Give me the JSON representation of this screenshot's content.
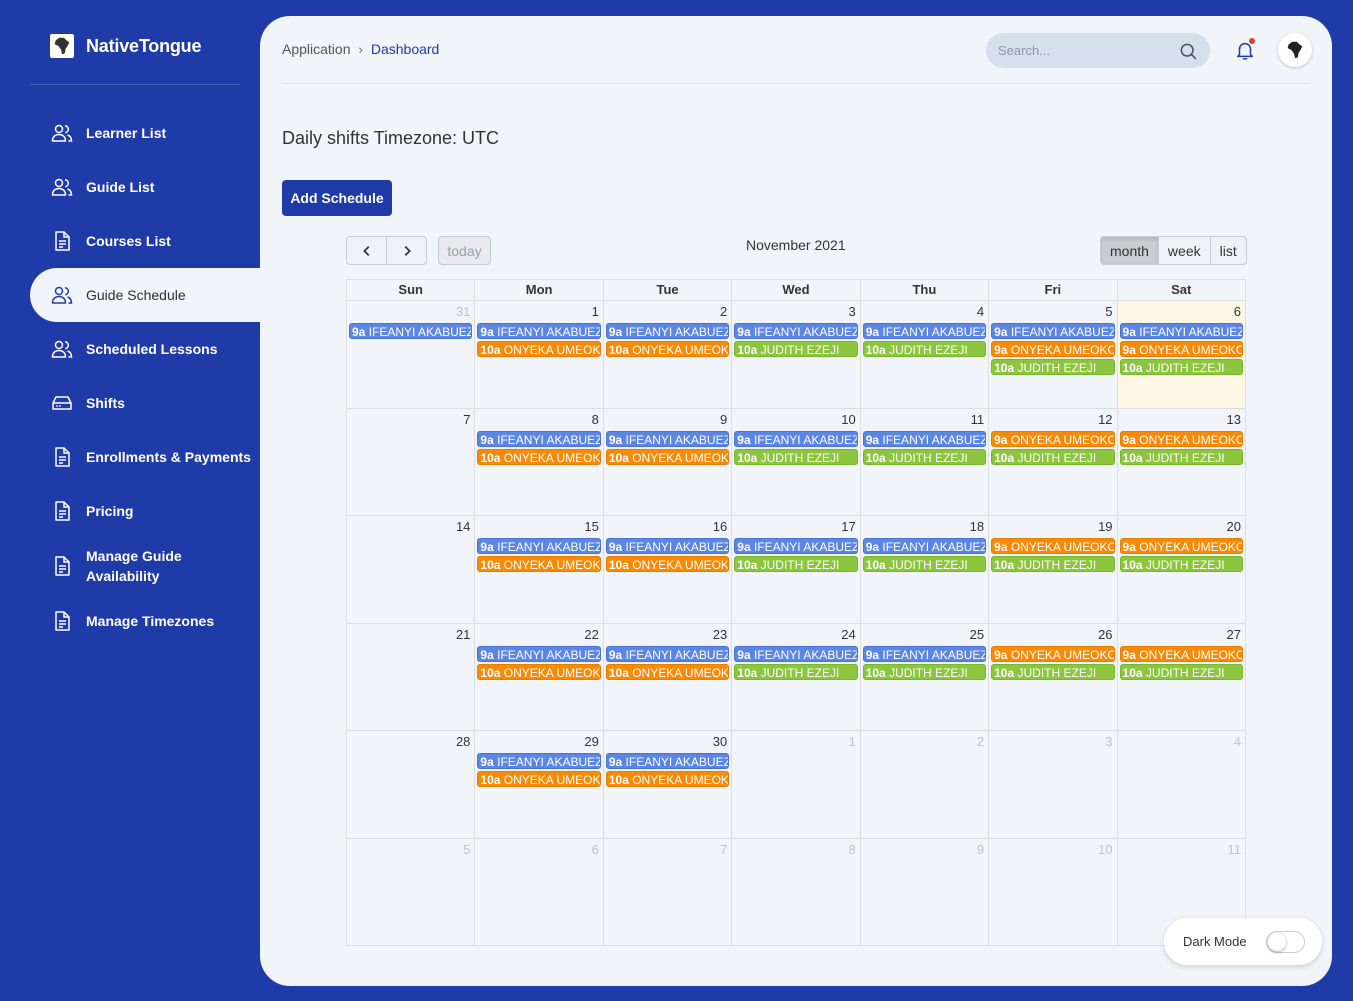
{
  "app": {
    "name": "NativeTongue"
  },
  "sidebar": {
    "items": [
      {
        "label": "Learner List",
        "icon": "users-icon"
      },
      {
        "label": "Guide List",
        "icon": "users-icon"
      },
      {
        "label": "Courses List",
        "icon": "document-icon"
      },
      {
        "label": "Guide Schedule",
        "icon": "users-icon",
        "active": true
      },
      {
        "label": "Scheduled Lessons",
        "icon": "users-icon"
      },
      {
        "label": "Shifts",
        "icon": "drive-icon"
      },
      {
        "label": "Enrollments & Payments",
        "icon": "document-icon"
      },
      {
        "label": "Pricing",
        "icon": "document-icon"
      },
      {
        "label": "Manage Guide Availability",
        "icon": "document-icon"
      },
      {
        "label": "Manage Timezones",
        "icon": "document-icon"
      }
    ]
  },
  "header": {
    "breadcrumb": [
      "Application",
      "Dashboard"
    ],
    "search_placeholder": "Search..."
  },
  "page": {
    "title": "Daily shifts Timezone: UTC",
    "add_button": "Add Schedule"
  },
  "calendar": {
    "title": "November 2021",
    "today_label": "today",
    "views": [
      "month",
      "week",
      "list"
    ],
    "active_view": "month",
    "weekdays": [
      "Sun",
      "Mon",
      "Tue",
      "Wed",
      "Thu",
      "Fri",
      "Sat"
    ],
    "weeks": [
      [
        {
          "day": "31",
          "other": true,
          "events": [
            {
              "time": "9a",
              "name": "IFEANYI AKABUEZE",
              "color": "blue"
            }
          ]
        },
        {
          "day": "1",
          "events": [
            {
              "time": "9a",
              "name": "IFEANYI AKABUEZE",
              "color": "blue"
            },
            {
              "time": "10a",
              "name": "ONYEKA UMEOKONKWO",
              "color": "orange"
            }
          ]
        },
        {
          "day": "2",
          "events": [
            {
              "time": "9a",
              "name": "IFEANYI AKABUEZE",
              "color": "blue"
            },
            {
              "time": "10a",
              "name": "ONYEKA UMEOKONKWO",
              "color": "orange"
            }
          ]
        },
        {
          "day": "3",
          "events": [
            {
              "time": "9a",
              "name": "IFEANYI AKABUEZE",
              "color": "blue"
            },
            {
              "time": "10a",
              "name": "JUDITH EZEJI",
              "color": "green"
            }
          ]
        },
        {
          "day": "4",
          "events": [
            {
              "time": "9a",
              "name": "IFEANYI AKABUEZE",
              "color": "blue"
            },
            {
              "time": "10a",
              "name": "JUDITH EZEJI",
              "color": "green"
            }
          ]
        },
        {
          "day": "5",
          "events": [
            {
              "time": "9a",
              "name": "IFEANYI AKABUEZE",
              "color": "blue"
            },
            {
              "time": "9a",
              "name": "ONYEKA UMEOKONKWO",
              "color": "orange"
            },
            {
              "time": "10a",
              "name": "JUDITH EZEJI",
              "color": "green"
            }
          ]
        },
        {
          "day": "6",
          "today": true,
          "events": [
            {
              "time": "9a",
              "name": "IFEANYI AKABUEZE",
              "color": "blue"
            },
            {
              "time": "9a",
              "name": "ONYEKA UMEOKONKWO",
              "color": "orange"
            },
            {
              "time": "10a",
              "name": "JUDITH EZEJI",
              "color": "green"
            }
          ]
        }
      ],
      [
        {
          "day": "7",
          "events": []
        },
        {
          "day": "8",
          "events": [
            {
              "time": "9a",
              "name": "IFEANYI AKABUEZE",
              "color": "blue"
            },
            {
              "time": "10a",
              "name": "ONYEKA UMEOKONKWO",
              "color": "orange"
            }
          ]
        },
        {
          "day": "9",
          "events": [
            {
              "time": "9a",
              "name": "IFEANYI AKABUEZE",
              "color": "blue"
            },
            {
              "time": "10a",
              "name": "ONYEKA UMEOKONKWO",
              "color": "orange"
            }
          ]
        },
        {
          "day": "10",
          "events": [
            {
              "time": "9a",
              "name": "IFEANYI AKABUEZE",
              "color": "blue"
            },
            {
              "time": "10a",
              "name": "JUDITH EZEJI",
              "color": "green"
            }
          ]
        },
        {
          "day": "11",
          "events": [
            {
              "time": "9a",
              "name": "IFEANYI AKABUEZE",
              "color": "blue"
            },
            {
              "time": "10a",
              "name": "JUDITH EZEJI",
              "color": "green"
            }
          ]
        },
        {
          "day": "12",
          "events": [
            {
              "time": "9a",
              "name": "ONYEKA UMEOKONKWO",
              "color": "orange"
            },
            {
              "time": "10a",
              "name": "JUDITH EZEJI",
              "color": "green"
            }
          ]
        },
        {
          "day": "13",
          "events": [
            {
              "time": "9a",
              "name": "ONYEKA UMEOKONKWO",
              "color": "orange"
            },
            {
              "time": "10a",
              "name": "JUDITH EZEJI",
              "color": "green"
            }
          ]
        }
      ],
      [
        {
          "day": "14",
          "events": []
        },
        {
          "day": "15",
          "events": [
            {
              "time": "9a",
              "name": "IFEANYI AKABUEZE",
              "color": "blue"
            },
            {
              "time": "10a",
              "name": "ONYEKA UMEOKONKWO",
              "color": "orange"
            }
          ]
        },
        {
          "day": "16",
          "events": [
            {
              "time": "9a",
              "name": "IFEANYI AKABUEZE",
              "color": "blue"
            },
            {
              "time": "10a",
              "name": "ONYEKA UMEOKONKWO",
              "color": "orange"
            }
          ]
        },
        {
          "day": "17",
          "events": [
            {
              "time": "9a",
              "name": "IFEANYI AKABUEZE",
              "color": "blue"
            },
            {
              "time": "10a",
              "name": "JUDITH EZEJI",
              "color": "green"
            }
          ]
        },
        {
          "day": "18",
          "events": [
            {
              "time": "9a",
              "name": "IFEANYI AKABUEZE",
              "color": "blue"
            },
            {
              "time": "10a",
              "name": "JUDITH EZEJI",
              "color": "green"
            }
          ]
        },
        {
          "day": "19",
          "events": [
            {
              "time": "9a",
              "name": "ONYEKA UMEOKONKWO",
              "color": "orange"
            },
            {
              "time": "10a",
              "name": "JUDITH EZEJI",
              "color": "green"
            }
          ]
        },
        {
          "day": "20",
          "events": [
            {
              "time": "9a",
              "name": "ONYEKA UMEOKONKWO",
              "color": "orange"
            },
            {
              "time": "10a",
              "name": "JUDITH EZEJI",
              "color": "green"
            }
          ]
        }
      ],
      [
        {
          "day": "21",
          "events": []
        },
        {
          "day": "22",
          "events": [
            {
              "time": "9a",
              "name": "IFEANYI AKABUEZE",
              "color": "blue"
            },
            {
              "time": "10a",
              "name": "ONYEKA UMEOKONKWO",
              "color": "orange"
            }
          ]
        },
        {
          "day": "23",
          "events": [
            {
              "time": "9a",
              "name": "IFEANYI AKABUEZE",
              "color": "blue"
            },
            {
              "time": "10a",
              "name": "ONYEKA UMEOKONKWO",
              "color": "orange"
            }
          ]
        },
        {
          "day": "24",
          "events": [
            {
              "time": "9a",
              "name": "IFEANYI AKABUEZE",
              "color": "blue"
            },
            {
              "time": "10a",
              "name": "JUDITH EZEJI",
              "color": "green"
            }
          ]
        },
        {
          "day": "25",
          "events": [
            {
              "time": "9a",
              "name": "IFEANYI AKABUEZE",
              "color": "blue"
            },
            {
              "time": "10a",
              "name": "JUDITH EZEJI",
              "color": "green"
            }
          ]
        },
        {
          "day": "26",
          "events": [
            {
              "time": "9a",
              "name": "ONYEKA UMEOKONKWO",
              "color": "orange"
            },
            {
              "time": "10a",
              "name": "JUDITH EZEJI",
              "color": "green"
            }
          ]
        },
        {
          "day": "27",
          "events": [
            {
              "time": "9a",
              "name": "ONYEKA UMEOKONKWO",
              "color": "orange"
            },
            {
              "time": "10a",
              "name": "JUDITH EZEJI",
              "color": "green"
            }
          ]
        }
      ],
      [
        {
          "day": "28",
          "events": []
        },
        {
          "day": "29",
          "events": [
            {
              "time": "9a",
              "name": "IFEANYI AKABUEZE",
              "color": "blue"
            },
            {
              "time": "10a",
              "name": "ONYEKA UMEOKONKWO",
              "color": "orange"
            }
          ]
        },
        {
          "day": "30",
          "events": [
            {
              "time": "9a",
              "name": "IFEANYI AKABUEZE",
              "color": "blue"
            },
            {
              "time": "10a",
              "name": "ONYEKA UMEOKONKWO",
              "color": "orange"
            }
          ]
        },
        {
          "day": "1",
          "other": true,
          "events": []
        },
        {
          "day": "2",
          "other": true,
          "events": []
        },
        {
          "day": "3",
          "other": true,
          "events": []
        },
        {
          "day": "4",
          "other": true,
          "events": []
        }
      ],
      [
        {
          "day": "5",
          "other": true,
          "events": []
        },
        {
          "day": "6",
          "other": true,
          "events": []
        },
        {
          "day": "7",
          "other": true,
          "events": []
        },
        {
          "day": "8",
          "other": true,
          "events": []
        },
        {
          "day": "9",
          "other": true,
          "events": []
        },
        {
          "day": "10",
          "other": true,
          "events": []
        },
        {
          "day": "11",
          "other": true,
          "events": []
        }
      ]
    ]
  },
  "dark_mode": {
    "label": "Dark Mode",
    "enabled": false
  },
  "colors": {
    "brand": "#1f3ba8",
    "panel": "#f1f4f9",
    "event_blue": "#5b86e5",
    "event_orange": "#f98a05",
    "event_green": "#8cc63f",
    "today_bg": "#fcf7e4"
  }
}
